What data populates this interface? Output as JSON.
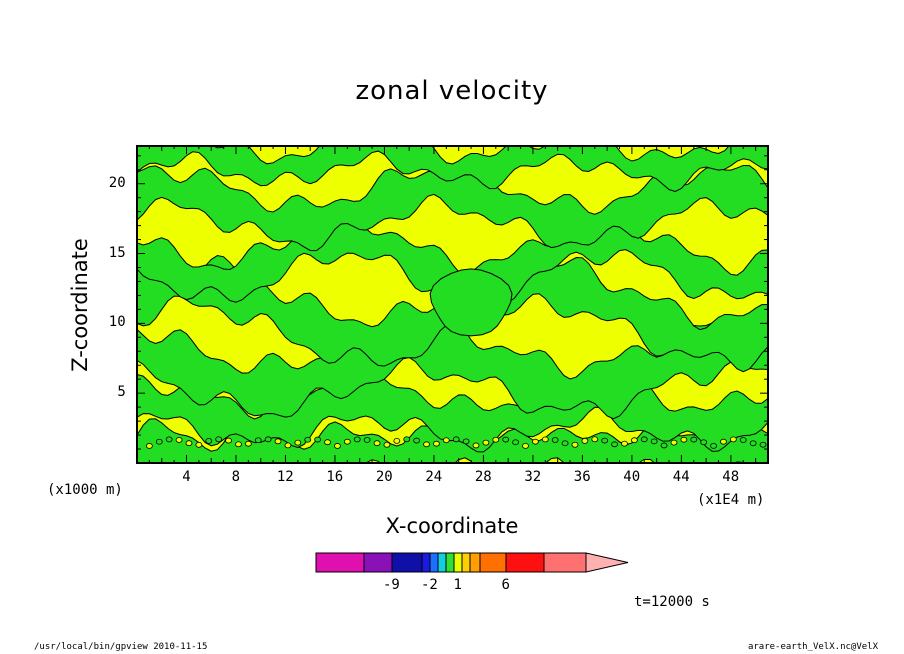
{
  "chart_data": {
    "type": "heatmap",
    "title": "zonal velocity",
    "xlabel": "X-coordinate",
    "ylabel": "Z-coordinate",
    "x_unit": "(x1E4 m)",
    "y_unit": "(x1000 m)",
    "xlim": [
      0,
      51
    ],
    "ylim": [
      0,
      22.7
    ],
    "x_ticks": [
      4,
      8,
      12,
      16,
      20,
      24,
      28,
      32,
      36,
      40,
      44,
      48
    ],
    "y_ticks": [
      5,
      10,
      15,
      20
    ],
    "grid": false,
    "colorbar": {
      "tick_labels": [
        "-9",
        "-2",
        "1",
        "6"
      ],
      "colors": [
        "#e010b0",
        "#8a10b8",
        "#1010a8",
        "#1a1ae0",
        "#1a70ff",
        "#10d0e0",
        "#30e030",
        "#e8ff00",
        "#ffd000",
        "#ffa000",
        "#ff7000",
        "#ff1010",
        "#ff7070",
        "#ffb0b0"
      ],
      "levels": [
        "-9",
        "-2",
        "1",
        "6"
      ]
    },
    "dominant_levels": [
      "green",
      "yellow"
    ],
    "time_label": "t=12000 s"
  },
  "colors": {
    "green": "#22dd22",
    "yellow": "#eeff00"
  },
  "footer": {
    "left": "/usr/local/bin/gpview   2010-11-15",
    "right": "arare-earth_VelX.nc@VelX"
  }
}
